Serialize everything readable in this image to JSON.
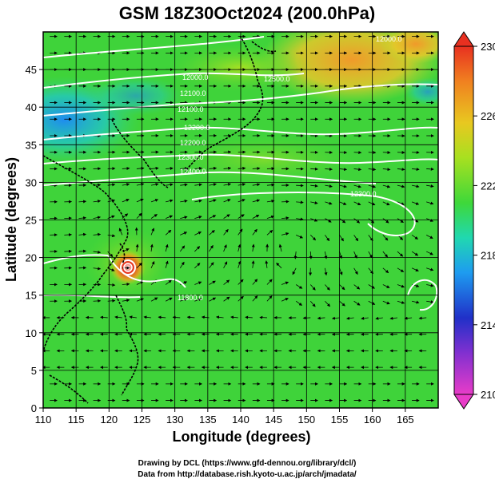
{
  "title": "GSM 18Z30Oct2024 (200.0hPa)",
  "x_axis": {
    "label": "Longitude (degrees)",
    "range": [
      110,
      170
    ],
    "ticks": [
      "110",
      "115",
      "120",
      "125",
      "130",
      "135",
      "140",
      "145",
      "150",
      "155",
      "160",
      "165"
    ]
  },
  "y_axis": {
    "label": "Latitude (degrees)",
    "range": [
      0,
      50
    ],
    "ticks": [
      "0",
      "5",
      "10",
      "15",
      "20",
      "25",
      "30",
      "35",
      "40",
      "45"
    ]
  },
  "colorbar": {
    "range": [
      210,
      230
    ],
    "ticks": [
      "210",
      "214",
      "218",
      "222",
      "226",
      "230"
    ],
    "colors": [
      "#e83cc8",
      "#2030c8",
      "#1e9cf0",
      "#20d8b0",
      "#3ed83a",
      "#a8e020",
      "#e8c820",
      "#f08020",
      "#e83020"
    ]
  },
  "contour_labels": [
    "12000.0",
    "12100.0",
    "12200.0",
    "12300.0",
    "12400.0",
    "12500.0",
    "12300.0",
    "11800.0"
  ],
  "credits": {
    "line1": "Drawing by DCL (https://www.gfd-dennou.org/library/dcl/)",
    "line2": "Data from http://database.rish.kyoto-u.ac.jp/arch/jmadata/"
  }
}
